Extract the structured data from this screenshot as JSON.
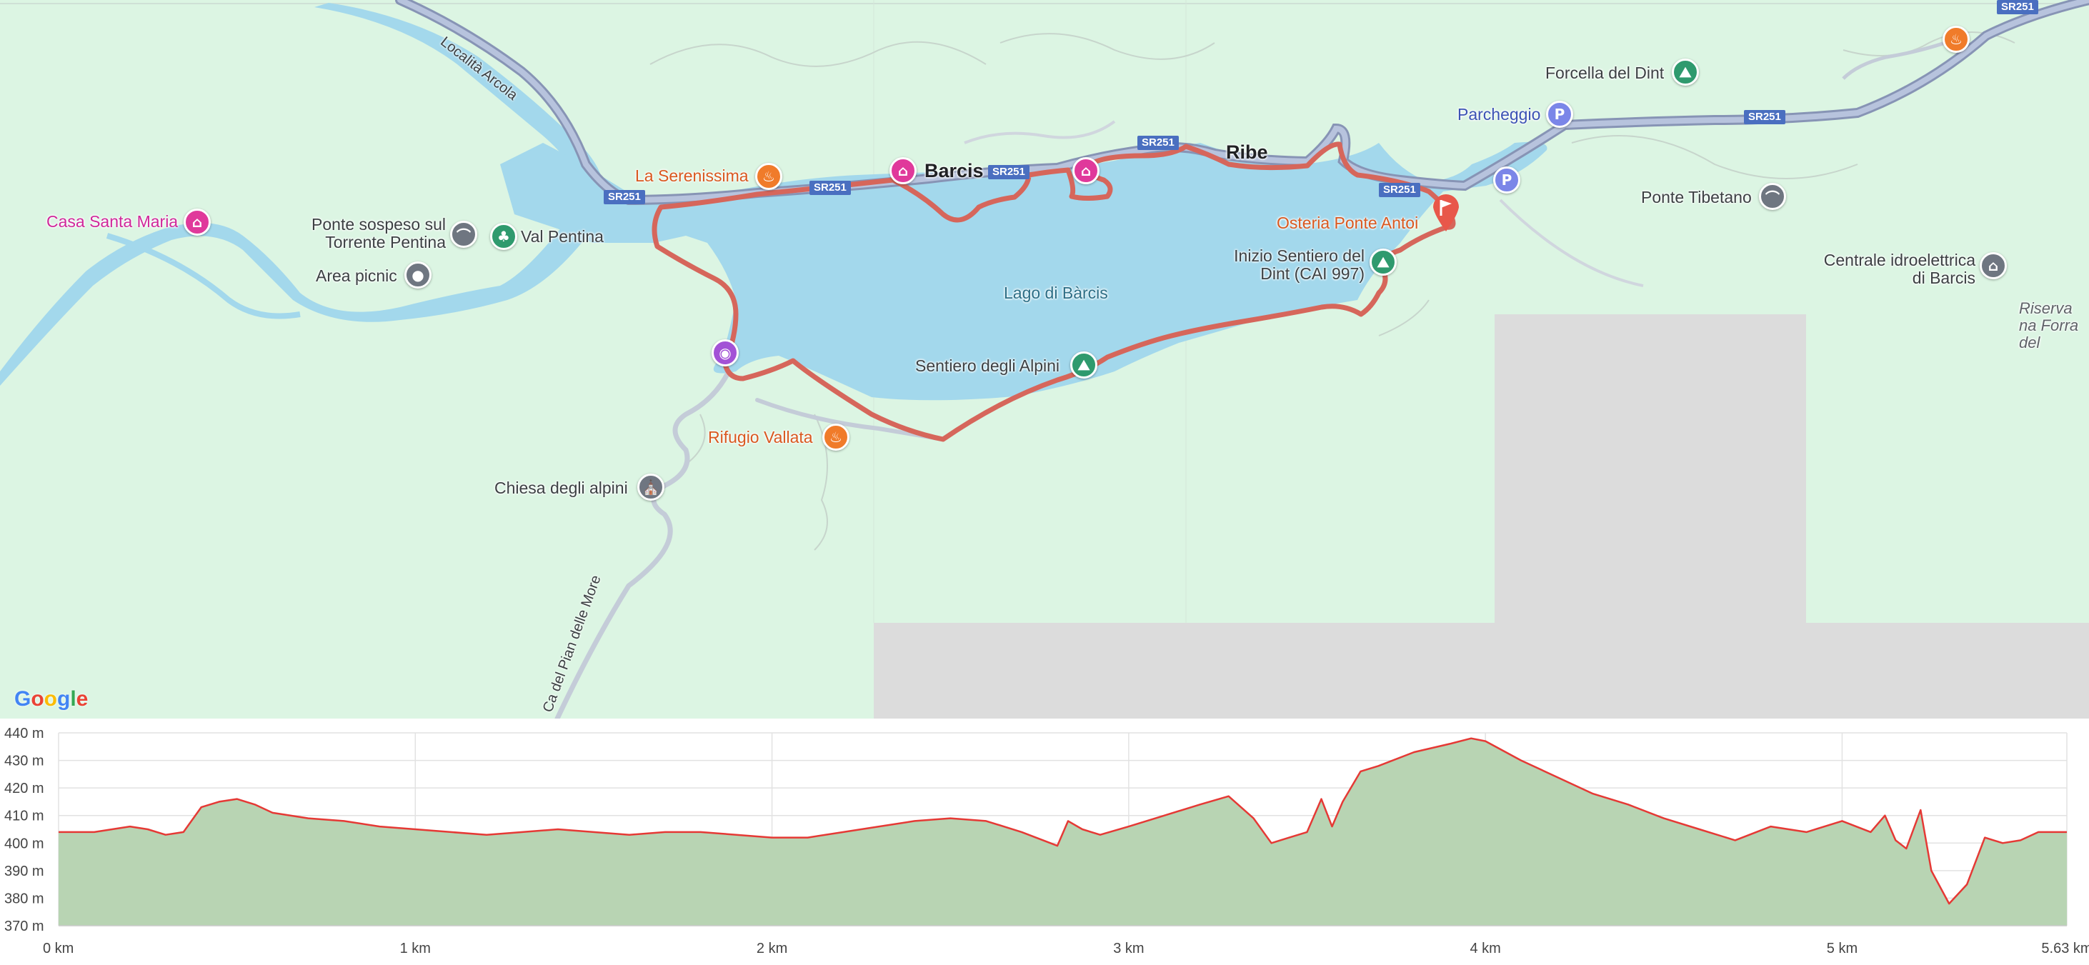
{
  "map": {
    "lake_label": "Lago di Bàrcis",
    "towns": {
      "barcis": "Barcis",
      "ribe": "Ribe"
    },
    "road_shields": [
      "SR251",
      "SR251",
      "SR251",
      "SR251",
      "SR251",
      "SR251",
      "SR251"
    ],
    "road_labels": {
      "arcola": "Località Arcola",
      "pian_delle_more": "Ca del Pian delle More"
    },
    "places": {
      "casa_santa_maria": "Casa Santa Maria",
      "ponte_sospeso": "Ponte sospeso sul Torrente Pentina",
      "val_pentina": "Val Pentina",
      "area_picnic": "Area picnic",
      "la_serenissima": "La Serenissima",
      "rifugio_vallata": "Rifugio Vallata",
      "chiesa_alpini": "Chiesa degli alpini",
      "sentiero_alpini": "Sentiero degli Alpini",
      "inizio_sentiero": "Inizio Sentiero del Dint (CAI 997)",
      "osteria": "Osteria Ponte Antoi",
      "parcheggio": "Parcheggio",
      "forcella": "Forcella del Dint",
      "ponte_tibetano": "Ponte Tibetano",
      "centrale": "Centrale idroelettrica di Barcis",
      "riserva": "Riserva na Forra del"
    },
    "icons": {
      "hotel": "hotel-icon",
      "restaurant": "restaurant-icon",
      "park": "tree-icon",
      "bridge": "bridge-icon",
      "viewpoint": "pin-dot-icon",
      "hiking": "hiking-icon",
      "parking": "parking-icon",
      "church": "church-icon",
      "camera": "camera-icon",
      "museum": "museum-icon",
      "flag": "finish-flag-icon"
    },
    "parking_letter": "P",
    "logo": "Google",
    "colors": {
      "land": "#dcf5e3",
      "water": "#a3d8ec",
      "route": "#d6665b",
      "road": "#9aa7c4",
      "gray_area": "#dcdcdc"
    }
  },
  "chart_data": {
    "type": "area",
    "title": "",
    "xlabel": "",
    "ylabel": "",
    "x_ticks": [
      "0 km",
      "1 km",
      "2 km",
      "3 km",
      "4 km",
      "5 km",
      "5.63 km"
    ],
    "y_ticks": [
      "440 m",
      "430 m",
      "420 m",
      "410 m",
      "400 m",
      "390 m",
      "380 m",
      "370 m"
    ],
    "xlim": [
      0,
      5.63
    ],
    "ylim": [
      370,
      440
    ],
    "grid": true,
    "series": [
      {
        "color": "#e53935",
        "fill": "#b8d4b3",
        "x": [
          0,
          0.1,
          0.2,
          0.25,
          0.3,
          0.35,
          0.4,
          0.45,
          0.5,
          0.55,
          0.6,
          0.7,
          0.8,
          0.9,
          1.0,
          1.1,
          1.2,
          1.3,
          1.4,
          1.5,
          1.6,
          1.7,
          1.8,
          1.9,
          2.0,
          2.1,
          2.2,
          2.3,
          2.4,
          2.5,
          2.6,
          2.7,
          2.8,
          2.83,
          2.87,
          2.92,
          3.0,
          3.1,
          3.2,
          3.28,
          3.35,
          3.4,
          3.45,
          3.5,
          3.54,
          3.57,
          3.6,
          3.65,
          3.7,
          3.8,
          3.9,
          3.96,
          4.0,
          4.1,
          4.2,
          4.3,
          4.4,
          4.5,
          4.6,
          4.7,
          4.8,
          4.9,
          5.0,
          5.08,
          5.12,
          5.15,
          5.18,
          5.22,
          5.25,
          5.3,
          5.35,
          5.4,
          5.45,
          5.5,
          5.55,
          5.63
        ],
        "y": [
          404,
          404,
          406,
          405,
          403,
          404,
          413,
          415,
          416,
          414,
          411,
          409,
          408,
          406,
          405,
          404,
          403,
          404,
          405,
          404,
          403,
          404,
          404,
          403,
          402,
          402,
          404,
          406,
          408,
          409,
          408,
          404,
          399,
          408,
          405,
          403,
          406,
          410,
          414,
          417,
          409,
          400,
          402,
          404,
          416,
          406,
          415,
          426,
          428,
          433,
          436,
          438,
          437,
          430,
          424,
          418,
          414,
          409,
          405,
          401,
          406,
          404,
          408,
          404,
          410,
          401,
          398,
          412,
          390,
          378,
          385,
          402,
          400,
          401,
          404,
          404
        ]
      }
    ]
  }
}
